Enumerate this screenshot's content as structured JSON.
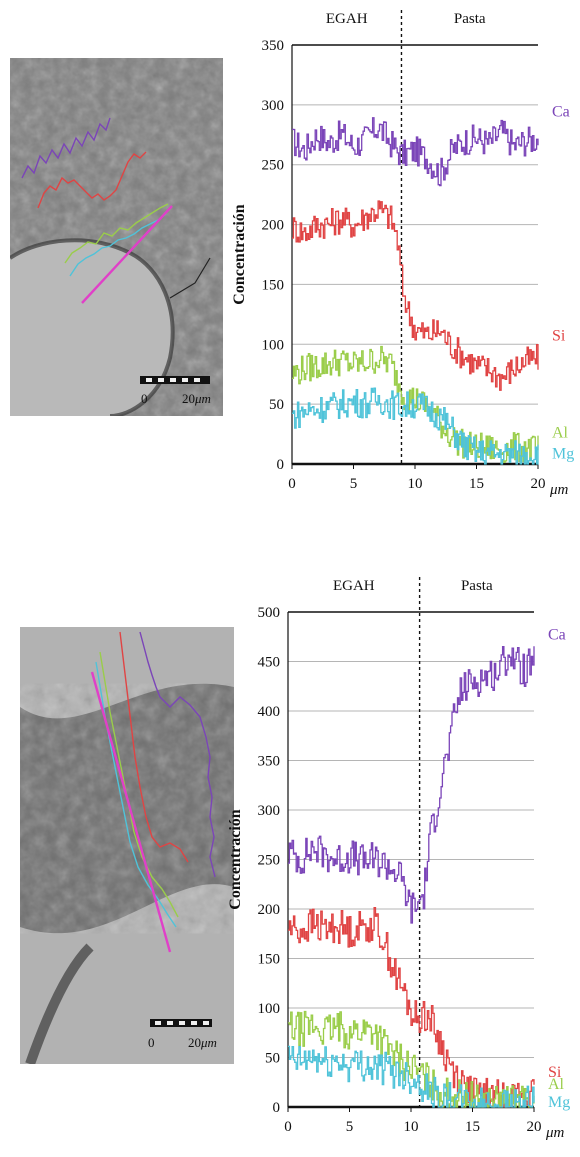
{
  "figure": {
    "colors": {
      "Ca": "#7b45b8",
      "Si": "#e04444",
      "Al": "#9acd4a",
      "Mg": "#4fc3d9",
      "profile_line": "#e040c8",
      "micrograph_base": "#8c8c8c"
    },
    "micrographs": [
      {
        "scale_start": "0",
        "scale_end": "20",
        "scale_unit": "μm"
      },
      {
        "scale_start": "0",
        "scale_end": "20",
        "scale_unit": "μm"
      }
    ]
  },
  "chart_data": [
    {
      "type": "line",
      "ylabel": "Concentración",
      "x_unit": "μm",
      "xlim": [
        0,
        20
      ],
      "ylim": [
        0,
        350
      ],
      "yticks": [
        0,
        50,
        100,
        150,
        200,
        250,
        300,
        350
      ],
      "xticks": [
        0,
        5,
        10,
        15,
        20
      ],
      "grid": true,
      "zone_labels": [
        "EGAH",
        "Pasta"
      ],
      "interface_x": 8.9,
      "legend": "right-inline",
      "series": [
        {
          "name": "Ca",
          "x": [
            0,
            1,
            2,
            3,
            4,
            5,
            6,
            7,
            8,
            8.9,
            10,
            11,
            12,
            13,
            14,
            15,
            16,
            17,
            18,
            19,
            20
          ],
          "y": [
            270,
            262,
            275,
            268,
            276,
            265,
            272,
            282,
            268,
            258,
            262,
            255,
            242,
            262,
            270,
            272,
            268,
            278,
            266,
            270,
            272
          ]
        },
        {
          "name": "Si",
          "x": [
            0,
            1,
            2,
            3,
            4,
            5,
            6,
            7,
            8,
            8.5,
            9,
            9.5,
            10,
            11,
            12,
            13,
            14,
            15,
            16,
            17,
            18,
            19,
            20
          ],
          "y": [
            198,
            193,
            200,
            201,
            205,
            199,
            207,
            213,
            205,
            190,
            145,
            125,
            112,
            108,
            112,
            98,
            90,
            82,
            79,
            72,
            80,
            86,
            88
          ]
        },
        {
          "name": "Al",
          "x": [
            0,
            1,
            2,
            3,
            4,
            5,
            6,
            7,
            8,
            9,
            10,
            11,
            12,
            13,
            14,
            15,
            16,
            17,
            18,
            19,
            20
          ],
          "y": [
            75,
            80,
            82,
            84,
            86,
            83,
            85,
            88,
            84,
            58,
            54,
            48,
            34,
            22,
            16,
            14,
            13,
            12,
            14,
            13,
            12
          ]
        },
        {
          "name": "Mg",
          "x": [
            0,
            1,
            2,
            3,
            4,
            5,
            6,
            7,
            8,
            9,
            10,
            11,
            12,
            13,
            14,
            15,
            16,
            17,
            18,
            19,
            20
          ],
          "y": [
            40,
            44,
            46,
            48,
            50,
            52,
            50,
            54,
            50,
            48,
            50,
            46,
            40,
            28,
            15,
            10,
            9,
            8,
            8,
            9,
            8
          ]
        }
      ]
    },
    {
      "type": "line",
      "ylabel": "Concentración",
      "x_unit": "μm",
      "xlim": [
        0,
        20
      ],
      "ylim": [
        0,
        500
      ],
      "yticks": [
        0,
        50,
        100,
        150,
        200,
        250,
        300,
        350,
        400,
        450,
        500
      ],
      "xticks": [
        0,
        5,
        10,
        15,
        20
      ],
      "grid": true,
      "zone_labels": [
        "EGAH",
        "Pasta"
      ],
      "interface_x": 10.7,
      "legend": "right-inline",
      "series": [
        {
          "name": "Ca",
          "x": [
            0,
            1,
            2,
            3,
            4,
            5,
            6,
            7,
            8,
            9,
            10,
            10.5,
            11,
            11.5,
            12,
            12.5,
            13,
            13.5,
            14,
            15,
            16,
            17,
            18,
            19,
            20
          ],
          "y": [
            258,
            250,
            262,
            255,
            250,
            254,
            248,
            250,
            245,
            235,
            200,
            205,
            215,
            270,
            300,
            335,
            360,
            395,
            420,
            430,
            435,
            440,
            460,
            440,
            450
          ]
        },
        {
          "name": "Si",
          "x": [
            0,
            1,
            2,
            3,
            4,
            5,
            6,
            7,
            7.5,
            8,
            8.5,
            9,
            9.5,
            10,
            10.5,
            11,
            11.5,
            12,
            12.5,
            13,
            14,
            15,
            16,
            17,
            18,
            19,
            20
          ],
          "y": [
            182,
            178,
            185,
            180,
            183,
            178,
            182,
            185,
            175,
            160,
            140,
            125,
            112,
            95,
            88,
            95,
            90,
            75,
            60,
            45,
            25,
            14,
            12,
            10,
            10,
            12,
            12
          ]
        },
        {
          "name": "Al",
          "x": [
            0,
            1,
            2,
            3,
            4,
            5,
            6,
            7,
            8,
            9,
            10,
            11,
            12,
            13,
            14,
            15,
            16,
            17,
            18,
            19,
            20
          ],
          "y": [
            80,
            78,
            82,
            76,
            80,
            75,
            78,
            78,
            60,
            48,
            40,
            30,
            18,
            12,
            10,
            8,
            6,
            5,
            5,
            5,
            6
          ]
        },
        {
          "name": "Mg",
          "x": [
            0,
            1,
            2,
            3,
            4,
            5,
            6,
            7,
            8,
            9,
            10,
            11,
            12,
            13,
            14,
            15,
            16,
            17,
            18,
            19,
            20
          ],
          "y": [
            48,
            45,
            50,
            44,
            46,
            42,
            44,
            40,
            38,
            35,
            30,
            22,
            12,
            8,
            5,
            4,
            3,
            3,
            3,
            3,
            4
          ]
        }
      ]
    }
  ]
}
